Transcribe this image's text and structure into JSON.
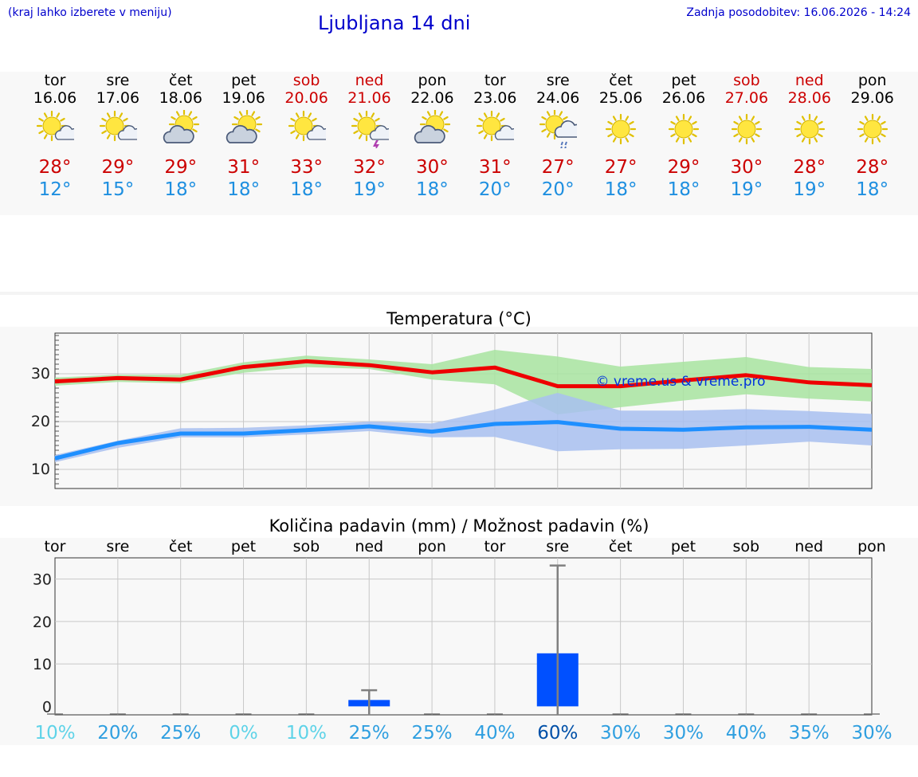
{
  "header": {
    "left_note": "(kraj lahko izberete v meniju)",
    "title": "Ljubljana 14 dni",
    "updated": "Zadnja posodobitev: 16.06.2026 - 14:24"
  },
  "days": [
    {
      "name": "tor",
      "date": "16.06",
      "icon": "sun-cloud-icon",
      "hi": "28°",
      "lo": "12°",
      "weekend": false
    },
    {
      "name": "sre",
      "date": "17.06",
      "icon": "sun-cloud-icon",
      "hi": "29°",
      "lo": "15°",
      "weekend": false
    },
    {
      "name": "čet",
      "date": "18.06",
      "icon": "cloud-sun-icon",
      "hi": "29°",
      "lo": "18°",
      "weekend": false
    },
    {
      "name": "pet",
      "date": "19.06",
      "icon": "cloud-sun-icon",
      "hi": "31°",
      "lo": "18°",
      "weekend": false
    },
    {
      "name": "sob",
      "date": "20.06",
      "icon": "sun-cloud-icon",
      "hi": "33°",
      "lo": "18°",
      "weekend": true
    },
    {
      "name": "ned",
      "date": "21.06",
      "icon": "sun-thunder-icon",
      "hi": "32°",
      "lo": "19°",
      "weekend": true
    },
    {
      "name": "pon",
      "date": "22.06",
      "icon": "cloud-sun-icon",
      "hi": "30°",
      "lo": "18°",
      "weekend": false
    },
    {
      "name": "tor",
      "date": "23.06",
      "icon": "sun-cloud-icon",
      "hi": "31°",
      "lo": "20°",
      "weekend": false
    },
    {
      "name": "sre",
      "date": "24.06",
      "icon": "sun-rain-icon",
      "hi": "27°",
      "lo": "20°",
      "weekend": false
    },
    {
      "name": "čet",
      "date": "25.06",
      "icon": "sun-icon",
      "hi": "27°",
      "lo": "18°",
      "weekend": false
    },
    {
      "name": "pet",
      "date": "26.06",
      "icon": "sun-icon",
      "hi": "29°",
      "lo": "18°",
      "weekend": false
    },
    {
      "name": "sob",
      "date": "27.06",
      "icon": "sun-icon",
      "hi": "30°",
      "lo": "19°",
      "weekend": true
    },
    {
      "name": "ned",
      "date": "28.06",
      "icon": "sun-icon",
      "hi": "28°",
      "lo": "19°",
      "weekend": true
    },
    {
      "name": "pon",
      "date": "29.06",
      "icon": "sun-icon",
      "hi": "28°",
      "lo": "18°",
      "weekend": false
    }
  ],
  "colors": {
    "max_line": "#ee0000",
    "min_line": "#1e8fff",
    "max_band": "#a8e4a0",
    "min_band": "#a8c0f0",
    "bar": "#0050ff",
    "pct_low": "#5fd3e8",
    "pct_mid": "#2f9fe0",
    "pct_high": "#0050a8"
  },
  "chart_data": [
    {
      "type": "line",
      "title": "Temperatura (°C)",
      "watermark": "© vreme.us & vreme.pro",
      "yticks": [
        10,
        20,
        30
      ],
      "ylim": [
        6,
        38.5
      ],
      "x": [
        0,
        1,
        2,
        3,
        4,
        5,
        6,
        7,
        8,
        9,
        10,
        11,
        12,
        13
      ],
      "series": [
        {
          "values": [
            28.4,
            29.1,
            28.8,
            31.4,
            32.6,
            31.8,
            30.3,
            31.3,
            27.4,
            27.4,
            28.6,
            29.7,
            28.2,
            27.6
          ],
          "band_low": [
            27.5,
            28.3,
            28.0,
            30.2,
            31.4,
            31.0,
            28.8,
            27.8,
            21.5,
            23.0,
            24.4,
            25.7,
            24.8,
            24.2
          ],
          "band_high": [
            29.2,
            29.8,
            29.8,
            32.4,
            33.8,
            33.0,
            32.0,
            35.0,
            33.6,
            31.5,
            32.5,
            33.5,
            31.4,
            31.0
          ]
        },
        {
          "values": [
            12.3,
            15.5,
            17.5,
            17.5,
            18.2,
            19.0,
            17.9,
            19.5,
            19.9,
            18.5,
            18.3,
            18.8,
            18.9,
            18.3
          ],
          "band_low": [
            11.5,
            14.5,
            16.7,
            16.7,
            17.3,
            18.0,
            16.7,
            16.8,
            13.8,
            14.2,
            14.3,
            15.0,
            15.8,
            15.0
          ],
          "band_high": [
            13.0,
            16.0,
            18.6,
            18.7,
            19.2,
            20.0,
            19.6,
            22.5,
            26.0,
            22.3,
            22.3,
            22.6,
            22.2,
            21.6
          ]
        }
      ]
    },
    {
      "type": "bar",
      "title": "Količina padavin (mm) / Možnost padavin (%)",
      "categories": [
        "tor",
        "sre",
        "čet",
        "pet",
        "sob",
        "ned",
        "pon",
        "tor",
        "sre",
        "čet",
        "pet",
        "sob",
        "ned",
        "pon"
      ],
      "yticks": [
        0,
        10,
        20,
        30
      ],
      "ylim": [
        -2,
        35
      ],
      "values": [
        0,
        0,
        0,
        0,
        0,
        1.5,
        0,
        0,
        12.5,
        0,
        0,
        0,
        0,
        0
      ],
      "error_high": [
        0,
        0,
        0,
        0,
        0,
        3.8,
        0,
        0,
        33.2,
        0,
        0,
        0,
        0,
        0
      ],
      "chance": [
        "10%",
        "20%",
        "25%",
        "0%",
        "10%",
        "25%",
        "25%",
        "40%",
        "60%",
        "30%",
        "30%",
        "40%",
        "35%",
        "30%"
      ]
    }
  ]
}
